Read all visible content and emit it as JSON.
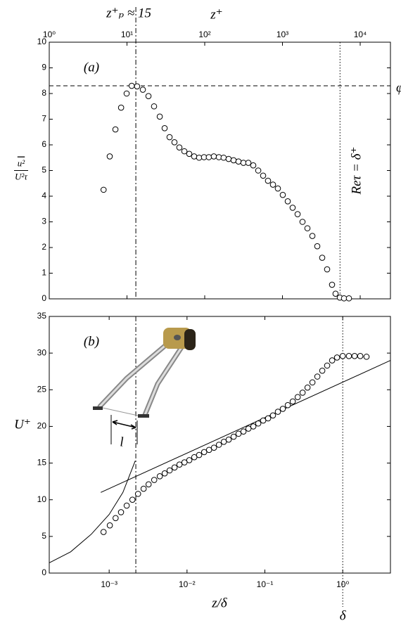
{
  "chart_data": [
    {
      "type": "scatter",
      "marker": "open-circle",
      "log_x": true,
      "x_axis": "top",
      "x_label": "z⁺",
      "y_label": {
        "numerator": "u²",
        "denominator": "U²τ"
      },
      "panel_label": "(a)",
      "xlim": [
        1,
        24500
      ],
      "ylim": [
        0,
        10
      ],
      "xticks": [
        {
          "value": 1,
          "label": "10⁰"
        },
        {
          "value": 10,
          "label": "10¹"
        },
        {
          "value": 100,
          "label": "10²"
        },
        {
          "value": 1000,
          "label": "10³"
        },
        {
          "value": 10000,
          "label": "10⁴"
        }
      ],
      "yticks": [
        0,
        1,
        2,
        3,
        4,
        5,
        6,
        7,
        8,
        9,
        10
      ],
      "annotations": [
        {
          "text": "z⁺ₚ ≈ 15",
          "x": 13,
          "style": "dashdot"
        },
        {
          "text": "φ",
          "y": 8.3,
          "style": "dashed"
        },
        {
          "text": "Reτ = δ⁺",
          "x": 5500,
          "style": "dotted"
        }
      ],
      "x": [
        5.0,
        6.0,
        7.1,
        8.4,
        9.9,
        11.5,
        13.5,
        16.0,
        18.9,
        22.3,
        26.4,
        30.5,
        35.3,
        40.8,
        47.2,
        54.7,
        63.2,
        73.1,
        84.7,
        98,
        113,
        131,
        152,
        175,
        203,
        235,
        272,
        315,
        364,
        421,
        488,
        564,
        652,
        755,
        873,
        1010,
        1170,
        1352,
        1566,
        1811,
        2095,
        2425,
        2805,
        3245,
        3755,
        4345,
        4820,
        5470,
        6195,
        7165
      ],
      "values": [
        4.25,
        5.55,
        6.6,
        7.45,
        8.0,
        8.3,
        8.28,
        8.15,
        7.9,
        7.5,
        7.1,
        6.65,
        6.3,
        6.1,
        5.9,
        5.75,
        5.65,
        5.55,
        5.5,
        5.52,
        5.52,
        5.55,
        5.52,
        5.5,
        5.45,
        5.4,
        5.35,
        5.3,
        5.3,
        5.2,
        5.0,
        4.8,
        4.6,
        4.45,
        4.3,
        4.05,
        3.8,
        3.55,
        3.3,
        3.0,
        2.75,
        2.45,
        2.05,
        1.6,
        1.15,
        0.55,
        0.2,
        0.05,
        0.02,
        0.02
      ]
    },
    {
      "type": "scatter",
      "marker": "open-circle",
      "log_x": true,
      "x_axis": "bottom",
      "x_label": "z/δ",
      "y_label": "U⁺",
      "panel_label": "(b)",
      "inset_label": "l",
      "xlim": [
        0.00017,
        4.1
      ],
      "ylim": [
        0,
        35
      ],
      "xticks": [
        {
          "value": 0.001,
          "label": "10⁻³"
        },
        {
          "value": 0.01,
          "label": "10⁻²"
        },
        {
          "value": 0.1,
          "label": "10⁻¹"
        },
        {
          "value": 1,
          "label": "10⁰"
        }
      ],
      "yticks": [
        0,
        5,
        10,
        15,
        20,
        25,
        30,
        35
      ],
      "annotations": [
        {
          "x": 0.0022,
          "style": "dashdot"
        },
        {
          "text": "δ",
          "x": 1,
          "style": "dotted"
        }
      ],
      "lines": [
        {
          "x": [
            0.00017,
            0.00032,
            0.00059,
            0.001,
            0.0015,
            0.00216
          ],
          "values": [
            1.4,
            2.9,
            5.3,
            8.0,
            11.0,
            15.3
          ]
        },
        {
          "x": [
            0.00078,
            4.1
          ],
          "values": [
            11.0,
            29.0
          ]
        }
      ],
      "x": [
        0.000847,
        0.00102,
        0.00121,
        0.00142,
        0.00168,
        0.00199,
        0.00235,
        0.00277,
        0.00321,
        0.00379,
        0.00447,
        0.00517,
        0.00598,
        0.00692,
        0.008,
        0.00927,
        0.0107,
        0.0124,
        0.0143,
        0.0166,
        0.0192,
        0.0222,
        0.0257,
        0.0297,
        0.0343,
        0.0397,
        0.0459,
        0.0531,
        0.0615,
        0.0711,
        0.0822,
        0.0951,
        0.11,
        0.127,
        0.147,
        0.17,
        0.197,
        0.228,
        0.264,
        0.305,
        0.353,
        0.408,
        0.472,
        0.546,
        0.631,
        0.731,
        0.845,
        1.0,
        1.2,
        1.42,
        1.68,
        2.02
      ],
      "values": [
        5.6,
        6.5,
        7.5,
        8.3,
        9.2,
        10.0,
        10.8,
        11.5,
        12.1,
        12.7,
        13.2,
        13.6,
        14.0,
        14.4,
        14.8,
        15.1,
        15.4,
        15.8,
        16.1,
        16.5,
        16.8,
        17.1,
        17.5,
        17.9,
        18.2,
        18.6,
        19.0,
        19.3,
        19.7,
        20.0,
        20.4,
        20.8,
        21.1,
        21.5,
        22.0,
        22.4,
        22.9,
        23.4,
        24.0,
        24.6,
        25.3,
        26.0,
        26.8,
        27.6,
        28.3,
        29.0,
        29.4,
        29.6,
        29.6,
        29.6,
        29.6,
        29.5
      ]
    }
  ]
}
